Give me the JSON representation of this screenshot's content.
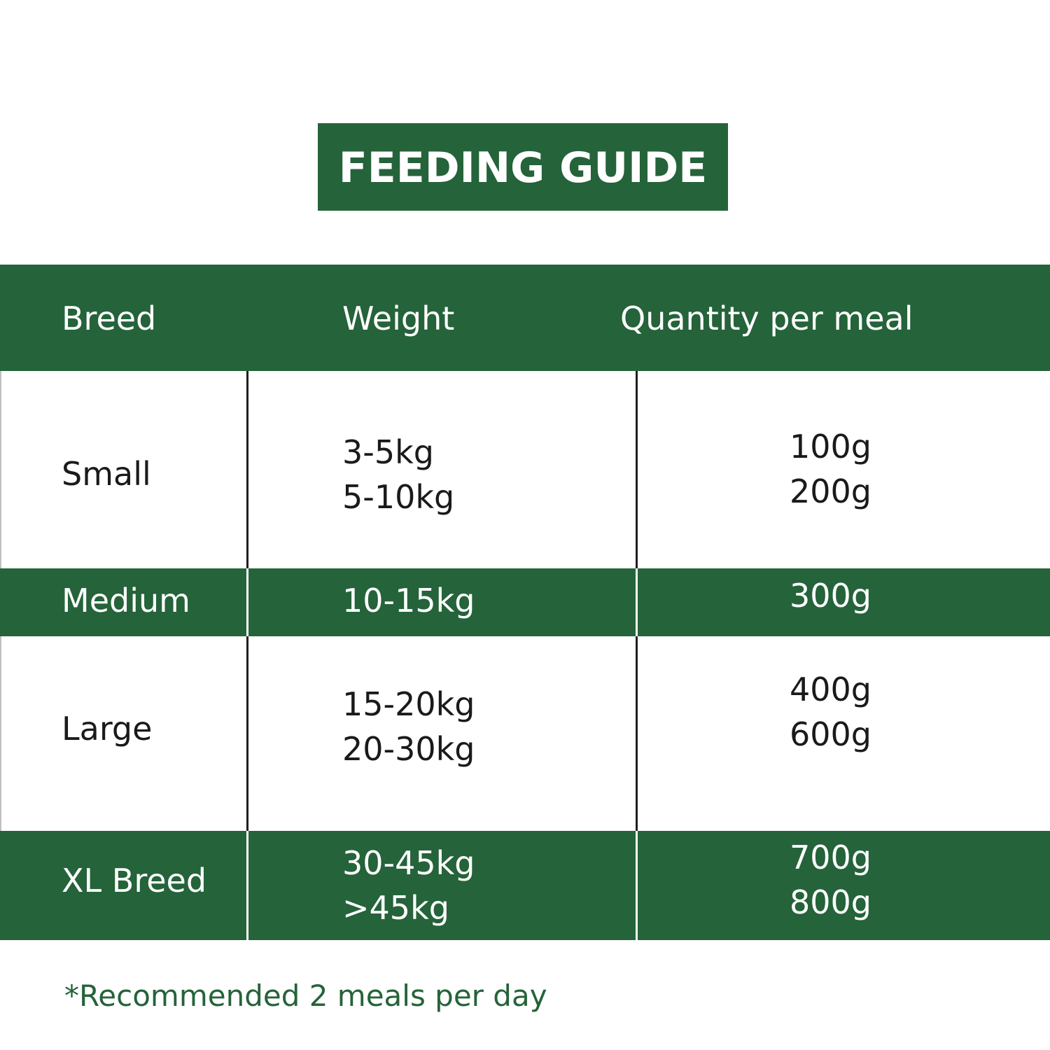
{
  "title": "FEEDING GUIDE",
  "table": {
    "headers": [
      "Breed",
      "Weight",
      "Quantity per meal"
    ],
    "rows": [
      {
        "breed": "Small",
        "weights": [
          "3-5kg",
          "5-10kg"
        ],
        "quantities": [
          "100g",
          "200g"
        ]
      },
      {
        "breed": "Medium",
        "weights": [
          "10-15kg"
        ],
        "quantities": [
          "300g"
        ]
      },
      {
        "breed": "Large",
        "weights": [
          "15-20kg",
          "20-30kg"
        ],
        "quantities": [
          "400g",
          "600g"
        ]
      },
      {
        "breed": "XL Breed",
        "weights": [
          "30-45kg",
          ">45kg"
        ],
        "quantities": [
          "700g",
          "800g"
        ]
      }
    ]
  },
  "footnote": "*Recommended 2 meals per day",
  "colors": {
    "brand_green": "#25633a",
    "text_dark": "#1a1a1a",
    "background": "#ffffff"
  }
}
